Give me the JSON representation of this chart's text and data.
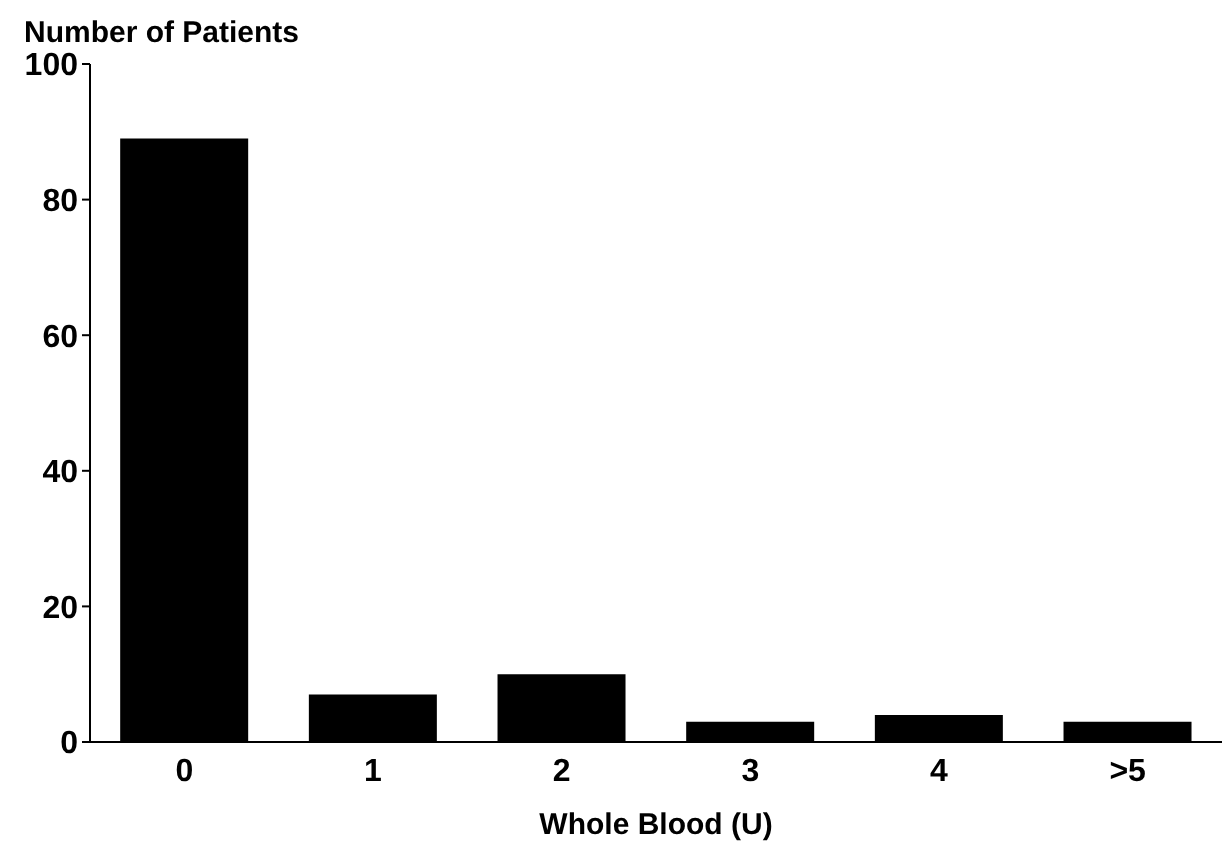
{
  "chart_data": {
    "type": "bar",
    "ylabel": "Number of Patients",
    "xlabel": "Whole Blood (U)",
    "categories": [
      "0",
      "1",
      "2",
      "3",
      "4",
      ">5"
    ],
    "values": [
      89,
      7,
      10,
      3,
      4,
      3
    ],
    "color": "#000000",
    "ylim": [
      0,
      100
    ],
    "yticks": [
      0,
      20,
      40,
      60,
      80,
      100
    ],
    "grid": false,
    "legend": false
  }
}
